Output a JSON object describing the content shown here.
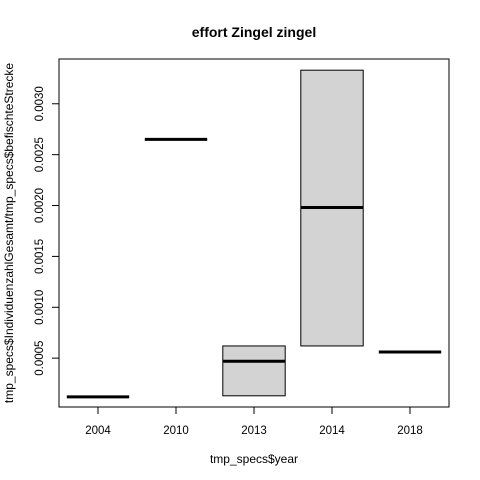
{
  "chart_data": {
    "type": "boxplot",
    "title": "effort Zingel zingel",
    "xlabel": "tmp_specs$year",
    "ylabel": "tmp_specs$IndividuenzahlGesamt/tmp_specs$befischteStrecke",
    "categories": [
      "2004",
      "2010",
      "2013",
      "2014",
      "2018"
    ],
    "boxes": [
      {
        "category": "2004",
        "min": 0.00012,
        "q1": 0.00012,
        "median": 0.00012,
        "q3": 0.00012,
        "max": 0.00012
      },
      {
        "category": "2010",
        "min": 0.00265,
        "q1": 0.00265,
        "median": 0.00265,
        "q3": 0.00265,
        "max": 0.00265
      },
      {
        "category": "2013",
        "min": 0.00013,
        "q1": 0.00013,
        "median": 0.00047,
        "q3": 0.00062,
        "max": 0.00062
      },
      {
        "category": "2014",
        "min": 0.00062,
        "q1": 0.00062,
        "median": 0.00198,
        "q3": 0.00333,
        "max": 0.00333
      },
      {
        "category": "2018",
        "min": 0.00056,
        "q1": 0.00056,
        "median": 0.00056,
        "q3": 0.00056,
        "max": 0.00056
      }
    ],
    "yticks": [
      0.0005,
      0.001,
      0.0015,
      0.002,
      0.0025,
      0.003
    ],
    "ytick_labels": [
      "0.0005",
      "0.0010",
      "0.0015",
      "0.0020",
      "0.0025",
      "0.0030"
    ],
    "ylim": [
      2e-05,
      0.00344
    ],
    "box_color": "#d3d3d3",
    "grid": false,
    "legend": "none"
  }
}
